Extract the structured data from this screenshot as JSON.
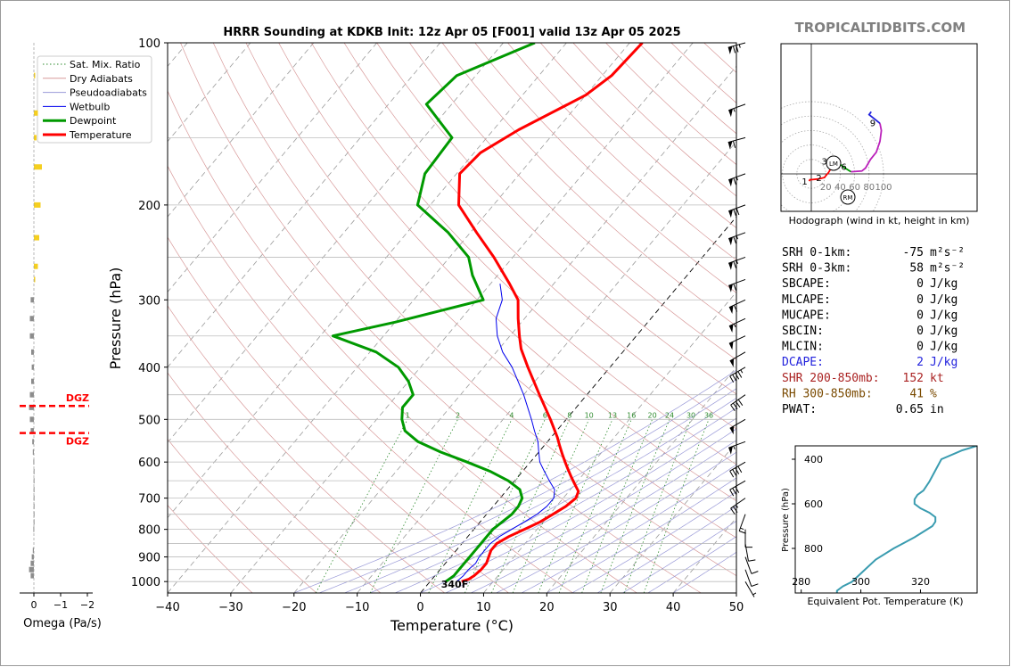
{
  "site": "TROPICALTIDBITS.COM",
  "title": "HRRR Sounding at KDKB Init: 12z Apr 05 [F001] valid 13z Apr 05 2025",
  "colors": {
    "temperature": "#ff0000",
    "dewpoint": "#009900",
    "wetbulb": "#0000ee",
    "dry_adiabat": "#d89a9a",
    "moist_adiabat": "#9a9ad8",
    "mixing_ratio": "#2e8b2e",
    "isotherm": "#9a9a9a",
    "omega_up": "#f5cf1f",
    "omega_down": "#8c8c8c",
    "dgz": "#ff0000",
    "theta_e_line": "#3a9cb0",
    "hodo_blue": "#2222dd",
    "hodo_purple": "#bb22bb",
    "site": "#808080"
  },
  "omega_panel": {
    "xlabel": "Omega (Pa/s)",
    "ticks": [
      "0",
      "−1",
      "−2"
    ],
    "dgz_label": "DGZ",
    "dgz_pressures": [
      472,
      530
    ],
    "bars": [
      {
        "p": 115,
        "v": -0.05
      },
      {
        "p": 135,
        "v": -0.15
      },
      {
        "p": 150,
        "v": -0.1
      },
      {
        "p": 170,
        "v": -0.3
      },
      {
        "p": 200,
        "v": -0.25
      },
      {
        "p": 230,
        "v": -0.2
      },
      {
        "p": 260,
        "v": -0.15
      },
      {
        "p": 275,
        "v": -0.05
      },
      {
        "p": 300,
        "v": 0.12
      },
      {
        "p": 325,
        "v": 0.15
      },
      {
        "p": 350,
        "v": 0.15
      },
      {
        "p": 375,
        "v": 0.1
      },
      {
        "p": 400,
        "v": 0.08
      },
      {
        "p": 425,
        "v": 0.1
      },
      {
        "p": 450,
        "v": 0.15
      },
      {
        "p": 475,
        "v": 0.18
      },
      {
        "p": 500,
        "v": 0.15
      },
      {
        "p": 525,
        "v": 0.12
      },
      {
        "p": 550,
        "v": 0.06
      },
      {
        "p": 575,
        "v": 0.04
      },
      {
        "p": 600,
        "v": 0.02
      },
      {
        "p": 625,
        "v": 0.01
      },
      {
        "p": 650,
        "v": 0.01
      },
      {
        "p": 675,
        "v": 0.01
      },
      {
        "p": 700,
        "v": 0.01
      },
      {
        "p": 725,
        "v": 0.01
      },
      {
        "p": 750,
        "v": 0.01
      },
      {
        "p": 775,
        "v": 0.01
      },
      {
        "p": 800,
        "v": 0.02
      },
      {
        "p": 875,
        "v": 0.04
      },
      {
        "p": 900,
        "v": 0.08
      },
      {
        "p": 925,
        "v": 0.12
      },
      {
        "p": 950,
        "v": 0.18
      },
      {
        "p": 975,
        "v": 0.12
      }
    ]
  },
  "chart_data": [
    {
      "type": "line",
      "title": "HRRR Sounding at KDKB Init: 12z Apr 05 [F001] valid 13z Apr 05 2025",
      "xlabel": "Temperature (°C)",
      "ylabel": "Pressure (hPa)",
      "xlim": [
        -40,
        50
      ],
      "ylim": [
        1050,
        100
      ],
      "y_scale": "log",
      "skew": true,
      "x_ticks": [
        "−40",
        "−30",
        "−20",
        "−10",
        "0",
        "10",
        "20",
        "30",
        "40",
        "50"
      ],
      "y_ticks": [
        "100",
        "200",
        "300",
        "400",
        "500",
        "600",
        "700",
        "800",
        "900",
        "1000"
      ],
      "legend_position": "top-left",
      "legend": [
        "Sat. Mix. Ratio",
        "Dry Adiabats",
        "Pseudoadiabats",
        "Wetbulb",
        "Dewpoint",
        "Temperature"
      ],
      "mixing_ratio_labels": [
        "1",
        "2",
        "4",
        "6",
        "8",
        "10",
        "13",
        "16",
        "20",
        "24",
        "30",
        "36"
      ],
      "surface_label": "340F",
      "series": [
        {
          "name": "Temperature",
          "points": [
            [
              1000,
              5.0
            ],
            [
              990,
              5.8
            ],
            [
              975,
              6.2
            ],
            [
              950,
              6.5
            ],
            [
              925,
              6.5
            ],
            [
              900,
              6.0
            ],
            [
              875,
              5.5
            ],
            [
              850,
              5.5
            ],
            [
              825,
              6.5
            ],
            [
              800,
              8.0
            ],
            [
              775,
              9.5
            ],
            [
              750,
              10.5
            ],
            [
              725,
              11.5
            ],
            [
              700,
              12.0
            ],
            [
              680,
              11.5
            ],
            [
              660,
              10.0
            ],
            [
              640,
              8.5
            ],
            [
              620,
              7.0
            ],
            [
              600,
              5.5
            ],
            [
              580,
              4.0
            ],
            [
              560,
              2.5
            ],
            [
              540,
              1.0
            ],
            [
              500,
              -2.5
            ],
            [
              450,
              -7.5
            ],
            [
              400,
              -13.0
            ],
            [
              370,
              -16.5
            ],
            [
              350,
              -18.5
            ],
            [
              325,
              -21.0
            ],
            [
              300,
              -23.5
            ],
            [
              280,
              -27.0
            ],
            [
              250,
              -33.0
            ],
            [
              225,
              -39.0
            ],
            [
              200,
              -45.5
            ],
            [
              175,
              -49.5
            ],
            [
              160,
              -49.0
            ],
            [
              145,
              -46.0
            ],
            [
              125,
              -40.0
            ],
            [
              115,
              -38.5
            ],
            [
              100,
              -38.0
            ]
          ]
        },
        {
          "name": "Dewpoint",
          "points": [
            [
              1000,
              2.5
            ],
            [
              975,
              3.0
            ],
            [
              950,
              3.0
            ],
            [
              925,
              3.0
            ],
            [
              900,
              3.0
            ],
            [
              875,
              3.0
            ],
            [
              850,
              3.0
            ],
            [
              825,
              3.0
            ],
            [
              800,
              3.0
            ],
            [
              775,
              3.5
            ],
            [
              750,
              4.0
            ],
            [
              725,
              4.0
            ],
            [
              700,
              3.5
            ],
            [
              675,
              2.0
            ],
            [
              650,
              -1.0
            ],
            [
              625,
              -5.0
            ],
            [
              600,
              -10.0
            ],
            [
              575,
              -15.5
            ],
            [
              550,
              -20.5
            ],
            [
              525,
              -24.0
            ],
            [
              500,
              -26.0
            ],
            [
              475,
              -27.5
            ],
            [
              450,
              -27.5
            ],
            [
              425,
              -30.0
            ],
            [
              400,
              -33.5
            ],
            [
              375,
              -39.0
            ],
            [
              350,
              -48.0
            ],
            [
              330,
              -40.0
            ],
            [
              300,
              -29.0
            ],
            [
              270,
              -34.0
            ],
            [
              250,
              -37.0
            ],
            [
              225,
              -43.5
            ],
            [
              200,
              -52.0
            ],
            [
              175,
              -55.0
            ],
            [
              150,
              -55.5
            ],
            [
              130,
              -64.0
            ],
            [
              115,
              -63.0
            ],
            [
              100,
              -55.0
            ]
          ]
        },
        {
          "name": "Wetbulb",
          "points": [
            [
              1000,
              4.2
            ],
            [
              975,
              4.5
            ],
            [
              950,
              4.5
            ],
            [
              925,
              4.8
            ],
            [
              900,
              4.5
            ],
            [
              875,
              4.5
            ],
            [
              850,
              4.5
            ],
            [
              825,
              5.0
            ],
            [
              800,
              6.0
            ],
            [
              775,
              7.0
            ],
            [
              750,
              8.0
            ],
            [
              725,
              8.5
            ],
            [
              700,
              8.5
            ],
            [
              675,
              7.5
            ],
            [
              650,
              5.5
            ],
            [
              625,
              3.5
            ],
            [
              600,
              1.5
            ],
            [
              575,
              0.0
            ],
            [
              550,
              -1.5
            ],
            [
              525,
              -3.5
            ],
            [
              500,
              -5.5
            ],
            [
              450,
              -10.0
            ],
            [
              400,
              -15.5
            ],
            [
              375,
              -19.0
            ],
            [
              350,
              -22.0
            ],
            [
              325,
              -24.5
            ],
            [
              300,
              -26.0
            ],
            [
              280,
              -28.5
            ]
          ]
        }
      ],
      "wind_barbs": [
        {
          "p": 100,
          "spd": 75,
          "dir": 255
        },
        {
          "p": 130,
          "spd": 55,
          "dir": 250
        },
        {
          "p": 150,
          "spd": 60,
          "dir": 255
        },
        {
          "p": 175,
          "spd": 65,
          "dir": 250
        },
        {
          "p": 200,
          "spd": 70,
          "dir": 250
        },
        {
          "p": 225,
          "spd": 65,
          "dir": 250
        },
        {
          "p": 250,
          "spd": 65,
          "dir": 250
        },
        {
          "p": 275,
          "spd": 60,
          "dir": 250
        },
        {
          "p": 300,
          "spd": 60,
          "dir": 245
        },
        {
          "p": 325,
          "spd": 55,
          "dir": 245
        },
        {
          "p": 350,
          "spd": 50,
          "dir": 245
        },
        {
          "p": 375,
          "spd": 50,
          "dir": 240
        },
        {
          "p": 400,
          "spd": 45,
          "dir": 240
        },
        {
          "p": 450,
          "spd": 40,
          "dir": 235
        },
        {
          "p": 500,
          "spd": 50,
          "dir": 240
        },
        {
          "p": 550,
          "spd": 55,
          "dir": 250
        },
        {
          "p": 600,
          "spd": 40,
          "dir": 240
        },
        {
          "p": 650,
          "spd": 30,
          "dir": 240
        },
        {
          "p": 700,
          "spd": 25,
          "dir": 235
        },
        {
          "p": 750,
          "spd": 15,
          "dir": 200
        },
        {
          "p": 800,
          "spd": 10,
          "dir": 180
        },
        {
          "p": 850,
          "spd": 10,
          "dir": 170
        },
        {
          "p": 900,
          "spd": 10,
          "dir": 160
        },
        {
          "p": 950,
          "spd": 10,
          "dir": 160
        },
        {
          "p": 1000,
          "spd": 5,
          "dir": 150
        }
      ]
    },
    {
      "type": "line",
      "title": "Hodograph (wind in kt, height in km)",
      "ring_labels": [
        "20",
        "40",
        "60",
        "80",
        "100"
      ],
      "height_labels": [
        "1",
        "2",
        "3",
        "6",
        "9"
      ],
      "storm_motion_labels": [
        "LM",
        "RM"
      ],
      "points": [
        [
          -3,
          -10
        ],
        [
          -2,
          -8
        ],
        [
          0,
          -8
        ],
        [
          10,
          -7
        ],
        [
          18,
          -5
        ],
        [
          24,
          2
        ],
        [
          28,
          9
        ],
        [
          33,
          14
        ],
        [
          38,
          15
        ],
        [
          45,
          9
        ],
        [
          55,
          3
        ],
        [
          70,
          4
        ],
        [
          75,
          8
        ],
        [
          82,
          20
        ],
        [
          90,
          30
        ],
        [
          95,
          45
        ],
        [
          97,
          60
        ],
        [
          95,
          70
        ],
        [
          85,
          78
        ],
        [
          80,
          82
        ],
        [
          83,
          86
        ]
      ]
    },
    {
      "type": "line",
      "xlabel": "Equivalent Pot. Temperature (K)",
      "ylabel": "Pressure (hPa)",
      "x_ticks": [
        "280",
        "300",
        "320"
      ],
      "y_ticks": [
        "400",
        "600",
        "800"
      ],
      "xlim": [
        278,
        339
      ],
      "ylim": [
        1000,
        340
      ],
      "points": [
        [
          1000,
          292
        ],
        [
          990,
          292
        ],
        [
          970,
          294
        ],
        [
          950,
          297
        ],
        [
          900,
          301
        ],
        [
          850,
          305
        ],
        [
          800,
          311
        ],
        [
          750,
          318
        ],
        [
          700,
          324
        ],
        [
          680,
          325
        ],
        [
          660,
          325
        ],
        [
          640,
          323
        ],
        [
          620,
          320
        ],
        [
          600,
          318
        ],
        [
          580,
          318
        ],
        [
          560,
          319
        ],
        [
          540,
          321
        ],
        [
          500,
          323
        ],
        [
          450,
          325
        ],
        [
          400,
          327
        ],
        [
          360,
          334
        ],
        [
          340,
          339
        ]
      ]
    }
  ],
  "indices": [
    {
      "label": "SRH 0-1km:",
      "value": "-75",
      "unit": "m²s⁻²",
      "color": "#000000"
    },
    {
      "label": "SRH 0-3km:",
      "value": "58",
      "unit": "m²s⁻²",
      "color": "#000000"
    },
    {
      "label": "SBCAPE:",
      "value": "0",
      "unit": "J/kg",
      "color": "#000000"
    },
    {
      "label": "MLCAPE:",
      "value": "0",
      "unit": "J/kg",
      "color": "#000000"
    },
    {
      "label": "MUCAPE:",
      "value": "0",
      "unit": "J/kg",
      "color": "#000000"
    },
    {
      "label": "SBCIN:",
      "value": "0",
      "unit": "J/kg",
      "color": "#000000"
    },
    {
      "label": "MLCIN:",
      "value": "0",
      "unit": "J/kg",
      "color": "#000000"
    },
    {
      "label": "DCAPE:",
      "value": "2",
      "unit": "J/kg",
      "color": "#2222dd"
    },
    {
      "label": "SHR 200-850mb:",
      "value": "152",
      "unit": "kt",
      "color": "#aa2222"
    },
    {
      "label": "RH 300-850mb:",
      "value": "41",
      "unit": "%",
      "color": "#7a4a00"
    },
    {
      "label": "PWAT:",
      "value": "0.65",
      "unit": "in",
      "color": "#000000"
    }
  ]
}
